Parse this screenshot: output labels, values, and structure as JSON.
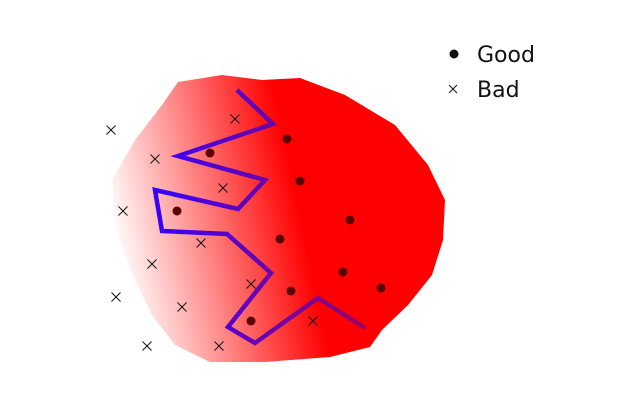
{
  "legend": {
    "good_label": "Good",
    "bad_label": "Bad"
  },
  "colors": {
    "region_fill": "#ff0000",
    "region_fade": "#ffffff",
    "boundary_start": "#3300ff",
    "boundary_end": "#9b0066",
    "good_marker": "#5a0000",
    "bad_marker": "#111111"
  },
  "chart_data": {
    "type": "scatter",
    "title": "",
    "xlabel": "",
    "ylabel": "",
    "series": [
      {
        "name": "Good",
        "marker": "dot",
        "points": [
          [
            210,
            153
          ],
          [
            287,
            139
          ],
          [
            300,
            181
          ],
          [
            177,
            211
          ],
          [
            350,
            220
          ],
          [
            280,
            239
          ],
          [
            343,
            272
          ],
          [
            291,
            291
          ],
          [
            381,
            288
          ],
          [
            251,
            321
          ]
        ]
      },
      {
        "name": "Bad",
        "marker": "x",
        "points": [
          [
            111,
            130
          ],
          [
            235,
            119
          ],
          [
            155,
            159
          ],
          [
            223,
            188
          ],
          [
            123,
            211
          ],
          [
            201,
            243
          ],
          [
            152,
            264
          ],
          [
            251,
            284
          ],
          [
            116,
            297
          ],
          [
            182,
            307
          ],
          [
            313,
            321
          ],
          [
            147,
            346
          ],
          [
            219,
            346
          ]
        ]
      }
    ],
    "boundary": [
      [
        237,
        90
      ],
      [
        273,
        124
      ],
      [
        178,
        156
      ],
      [
        265,
        180
      ],
      [
        238,
        209
      ],
      [
        155,
        190
      ],
      [
        162,
        231
      ],
      [
        227,
        234
      ],
      [
        271,
        273
      ],
      [
        228,
        327
      ],
      [
        255,
        343
      ],
      [
        318,
        298
      ],
      [
        365,
        328
      ]
    ]
  }
}
